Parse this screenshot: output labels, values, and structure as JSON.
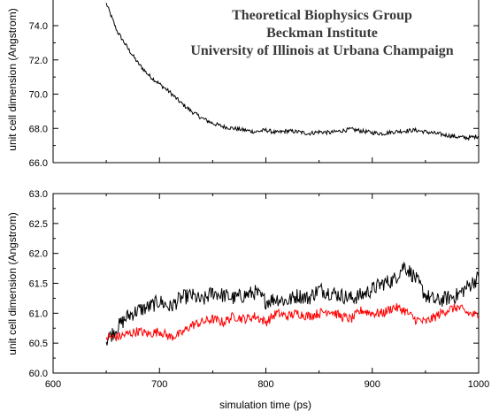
{
  "header": {
    "lines": [
      "Theoretical Biophysics Group",
      "Beckman Institute",
      "University of Illinois at Urbana Champaign"
    ]
  },
  "chart_data": [
    {
      "type": "line",
      "panel": "top",
      "ylabel": "unit cell dimension (Angstrom)",
      "xlim": [
        600,
        1000
      ],
      "ylim": [
        66.0,
        75.5
      ],
      "yticks": [
        "66.0",
        "68.0",
        "70.0",
        "72.0",
        "74.0"
      ],
      "grid": false,
      "series": [
        {
          "color": "#000000",
          "x": [
            650,
            660,
            670,
            680,
            690,
            700,
            710,
            720,
            730,
            740,
            750,
            760,
            770,
            780,
            790,
            800,
            810,
            820,
            830,
            840,
            850,
            860,
            870,
            880,
            890,
            900,
            910,
            920,
            930,
            940,
            950,
            960,
            970,
            980,
            990,
            1000
          ],
          "y": [
            75.3,
            73.7,
            72.7,
            71.8,
            71.1,
            70.6,
            70.1,
            69.5,
            69.0,
            68.6,
            68.3,
            68.1,
            68.0,
            67.9,
            67.8,
            67.9,
            67.75,
            67.85,
            67.8,
            67.7,
            67.8,
            67.75,
            67.85,
            67.95,
            67.85,
            67.75,
            67.7,
            67.8,
            67.85,
            67.9,
            67.8,
            67.7,
            67.6,
            67.5,
            67.45,
            67.55
          ]
        }
      ]
    },
    {
      "type": "line",
      "panel": "bottom",
      "xlabel": "simulation time (ps)",
      "ylabel": "unit cell dimension (Angstrom)",
      "xlim": [
        600,
        1000
      ],
      "ylim": [
        60.0,
        63.0
      ],
      "xticks": [
        "600",
        "700",
        "800",
        "900",
        "1000"
      ],
      "yticks": [
        "60.0",
        "60.5",
        "61.0",
        "61.5",
        "62.0",
        "62.5",
        "63.0"
      ],
      "grid": false,
      "series": [
        {
          "color": "#000000",
          "x": [
            650,
            660,
            670,
            680,
            690,
            700,
            710,
            720,
            730,
            740,
            750,
            760,
            770,
            780,
            790,
            800,
            810,
            820,
            830,
            840,
            850,
            860,
            870,
            880,
            890,
            900,
            910,
            920,
            930,
            940,
            950,
            960,
            970,
            980,
            990,
            1000
          ],
          "y": [
            60.55,
            60.75,
            60.95,
            61.05,
            61.1,
            61.2,
            61.1,
            61.25,
            61.3,
            61.2,
            61.35,
            61.3,
            61.25,
            61.3,
            61.35,
            61.2,
            61.25,
            61.2,
            61.3,
            61.25,
            61.4,
            61.35,
            61.3,
            61.25,
            61.3,
            61.4,
            61.5,
            61.55,
            61.8,
            61.6,
            61.3,
            61.2,
            61.25,
            61.3,
            61.45,
            61.6
          ]
        },
        {
          "color": "#ff0000",
          "x": [
            650,
            660,
            670,
            680,
            690,
            700,
            710,
            720,
            730,
            740,
            750,
            760,
            770,
            780,
            790,
            800,
            810,
            820,
            830,
            840,
            850,
            860,
            870,
            880,
            890,
            900,
            910,
            920,
            930,
            940,
            950,
            960,
            970,
            980,
            990,
            1000
          ],
          "y": [
            60.6,
            60.6,
            60.65,
            60.7,
            60.65,
            60.7,
            60.6,
            60.65,
            60.8,
            60.85,
            60.9,
            60.85,
            60.95,
            60.9,
            60.95,
            60.85,
            61.0,
            60.95,
            61.0,
            60.95,
            61.0,
            61.05,
            60.95,
            60.9,
            61.05,
            61.0,
            61.0,
            61.1,
            61.05,
            60.9,
            60.85,
            60.95,
            61.05,
            61.1,
            61.0,
            60.95
          ]
        }
      ]
    }
  ]
}
